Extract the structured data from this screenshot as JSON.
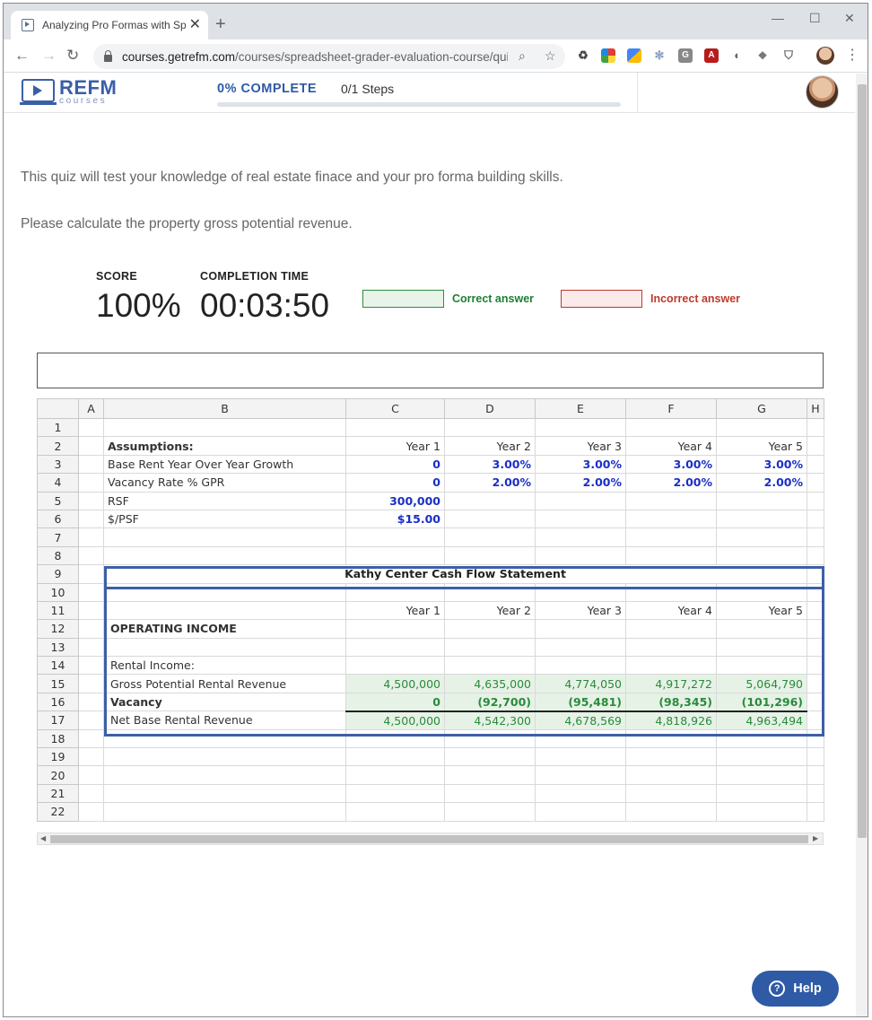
{
  "browser": {
    "tab_title": "Analyzing Pro Formas with Sprea",
    "url_host": "courses.getrefm.com",
    "url_path": "/courses/spreadsheet-grader-evaluation-course/quizze..."
  },
  "header": {
    "logo_main": "REFM",
    "logo_sub": "courses",
    "progress_label": "0% COMPLETE",
    "progress_value": 0,
    "steps": "0/1 Steps"
  },
  "intro": {
    "line1": "This quiz will test your knowledge of real estate finace and your pro forma building skills.",
    "line2": "Please calculate the property gross potential revenue."
  },
  "results": {
    "score_label": "SCORE",
    "score_value": "100%",
    "time_label": "COMPLETION TIME",
    "time_value": "00:03:50",
    "correct_label": "Correct answer",
    "incorrect_label": "Incorrect answer",
    "correct_color": "#1e7e34",
    "incorrect_color": "#c0392b"
  },
  "sheet": {
    "columns": [
      "",
      "A",
      "B",
      "C",
      "D",
      "E",
      "F",
      "G",
      "H"
    ],
    "rows": [
      [
        "1",
        "",
        "",
        "",
        "",
        "",
        "",
        "",
        ""
      ],
      [
        "2",
        "",
        "Assumptions:",
        "Year 1",
        "Year 2",
        "Year 3",
        "Year 4",
        "Year 5",
        ""
      ],
      [
        "3",
        "",
        "Base Rent Year Over Year Growth",
        "0",
        "3.00%",
        "3.00%",
        "3.00%",
        "3.00%",
        ""
      ],
      [
        "4",
        "",
        "Vacancy Rate % GPR",
        "0",
        "2.00%",
        "2.00%",
        "2.00%",
        "2.00%",
        ""
      ],
      [
        "5",
        "",
        "RSF",
        "300,000",
        "",
        "",
        "",
        "",
        ""
      ],
      [
        "6",
        "",
        "$/PSF",
        "$15.00",
        "",
        "",
        "",
        "",
        ""
      ],
      [
        "7",
        "",
        "",
        "",
        "",
        "",
        "",
        "",
        ""
      ],
      [
        "8",
        "",
        "",
        "",
        "",
        "",
        "",
        "",
        ""
      ],
      [
        "9",
        "",
        "Kathy Center Cash Flow Statement",
        "",
        "",
        "",
        "",
        "",
        ""
      ],
      [
        "10",
        "",
        "",
        "",
        "",
        "",
        "",
        "",
        ""
      ],
      [
        "11",
        "",
        "",
        "Year 1",
        "Year 2",
        "Year 3",
        "Year 4",
        "Year 5",
        ""
      ],
      [
        "12",
        "",
        "OPERATING INCOME",
        "",
        "",
        "",
        "",
        "",
        ""
      ],
      [
        "13",
        "",
        "",
        "",
        "",
        "",
        "",
        "",
        ""
      ],
      [
        "14",
        "",
        "Rental Income:",
        "",
        "",
        "",
        "",
        "",
        ""
      ],
      [
        "15",
        "",
        "Gross Potential Rental Revenue",
        "4,500,000",
        "4,635,000",
        "4,774,050",
        "4,917,272",
        "5,064,790",
        ""
      ],
      [
        "16",
        "",
        "Vacancy",
        "0",
        "(92,700)",
        "(95,481)",
        "(98,345)",
        "(101,296)",
        ""
      ],
      [
        "17",
        "",
        "Net Base Rental Revenue",
        "4,500,000",
        "4,542,300",
        "4,678,569",
        "4,818,926",
        "4,963,494",
        ""
      ],
      [
        "18",
        "",
        "",
        "",
        "",
        "",
        "",
        "",
        ""
      ],
      [
        "19",
        "",
        "",
        "",
        "",
        "",
        "",
        "",
        ""
      ],
      [
        "20",
        "",
        "",
        "",
        "",
        "",
        "",
        "",
        ""
      ],
      [
        "21",
        "",
        "",
        "",
        "",
        "",
        "",
        "",
        ""
      ],
      [
        "22",
        "",
        "",
        "",
        "",
        "",
        "",
        "",
        ""
      ]
    ]
  },
  "help": {
    "label": "Help"
  }
}
